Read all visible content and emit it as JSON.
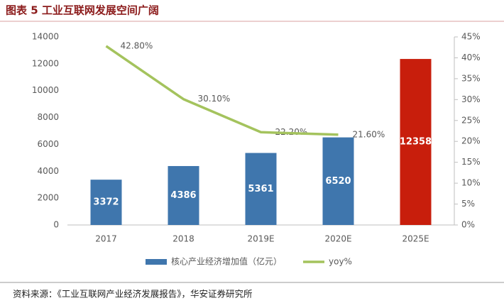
{
  "chart_data": {
    "type": "bar_line",
    "title": "图表 5 工业互联网发展空间广阔",
    "source": "资料来源：《工业互联网产业经济发展报告》，华安证券研究所",
    "categories": [
      "2017",
      "2018",
      "2019E",
      "2020E",
      "2025E"
    ],
    "series": [
      {
        "name": "核心产业经济增加值（亿元）",
        "type": "bar",
        "color": "#3f76ad",
        "colors": [
          "#3f76ad",
          "#3f76ad",
          "#3f76ad",
          "#3f76ad",
          "#c81e0c"
        ],
        "values": [
          3372,
          4386,
          5361,
          6520,
          12358
        ]
      },
      {
        "name": "yoy%",
        "type": "line",
        "axis": "y2",
        "color": "#a4c35d",
        "values": [
          42.8,
          30.1,
          22.2,
          21.6,
          null
        ],
        "value_labels": [
          "42.80%",
          "30.10%",
          "22.20%",
          "21.60%",
          null
        ]
      }
    ],
    "ylim": [
      0,
      14000
    ],
    "yticks": [
      0,
      2000,
      4000,
      6000,
      8000,
      10000,
      12000,
      14000
    ],
    "y2lim": [
      0,
      45
    ],
    "y2ticks": [
      {
        "value": 0,
        "label": "0%"
      },
      {
        "value": 5,
        "label": "5%"
      },
      {
        "value": 10,
        "label": "10%"
      },
      {
        "value": 15,
        "label": "15%"
      },
      {
        "value": 20,
        "label": "20%"
      },
      {
        "value": 25,
        "label": "25%"
      },
      {
        "value": 30,
        "label": "30%"
      },
      {
        "value": 35,
        "label": "35%"
      },
      {
        "value": 40,
        "label": "40%"
      },
      {
        "value": 45,
        "label": "45%"
      }
    ],
    "legend": "bottom"
  }
}
